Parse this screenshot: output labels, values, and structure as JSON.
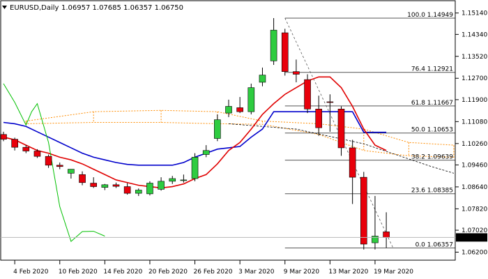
{
  "header": {
    "symbol": "EURUSD,Daily",
    "ohlc": "1.06957 1.07685 1.06357 1.06750"
  },
  "chart_data": {
    "type": "candlestick",
    "ylim": [
      1.059,
      1.156
    ],
    "y_ticks": [
      "1.15140",
      "1.14340",
      "1.13520",
      "1.12700",
      "1.11900",
      "1.11080",
      "1.10260",
      "1.09460",
      "1.08640",
      "1.07820",
      "1.07020",
      "1.06200"
    ],
    "x_labels": [
      {
        "label": "4 Feb 2020",
        "day": 1
      },
      {
        "label": "10 Feb 2020",
        "day": 5
      },
      {
        "label": "14 Feb 2020",
        "day": 9
      },
      {
        "label": "20 Feb 2020",
        "day": 13
      },
      {
        "label": "26 Feb 2020",
        "day": 17
      },
      {
        "label": "3 Mar 2020",
        "day": 21
      },
      {
        "label": "9 Mar 2020",
        "day": 25
      },
      {
        "label": "13 Mar 2020",
        "day": 29
      },
      {
        "label": "19 Mar 2020",
        "day": 33
      }
    ],
    "current_price": "1.06750",
    "colors": {
      "bull": "#2ecc40",
      "bear": "#e8000b",
      "border": "#000000",
      "ma_fast": "#e00000",
      "ma_slow": "#0000cc",
      "lagging": "#00c000",
      "cloud": "#ff8c00",
      "fib": "#555555"
    },
    "candles": [
      {
        "o": 1.106,
        "h": 1.107,
        "l": 1.1035,
        "c": 1.1042
      },
      {
        "o": 1.1042,
        "h": 1.1048,
        "l": 1.1,
        "c": 1.1012
      },
      {
        "o": 1.1012,
        "h": 1.102,
        "l": 1.099,
        "c": 1.0998
      },
      {
        "o": 1.0998,
        "h": 1.1005,
        "l": 1.0972,
        "c": 1.0978
      },
      {
        "o": 1.0978,
        "h": 1.0985,
        "l": 1.0935,
        "c": 1.0945
      },
      {
        "o": 1.0945,
        "h": 1.0955,
        "l": 1.093,
        "c": 1.094
      },
      {
        "o": 1.0915,
        "h": 1.093,
        "l": 1.0895,
        "c": 1.093
      },
      {
        "o": 1.091,
        "h": 1.0922,
        "l": 1.087,
        "c": 1.088
      },
      {
        "o": 1.0878,
        "h": 1.09,
        "l": 1.086,
        "c": 1.0865
      },
      {
        "o": 1.0862,
        "h": 1.0875,
        "l": 1.0852,
        "c": 1.0872
      },
      {
        "o": 1.0872,
        "h": 1.088,
        "l": 1.086,
        "c": 1.0866
      },
      {
        "o": 1.0865,
        "h": 1.0878,
        "l": 1.0835,
        "c": 1.084
      },
      {
        "o": 1.084,
        "h": 1.0858,
        "l": 1.083,
        "c": 1.0852
      },
      {
        "o": 1.0838,
        "h": 1.0885,
        "l": 1.0832,
        "c": 1.0878
      },
      {
        "o": 1.0855,
        "h": 1.09,
        "l": 1.085,
        "c": 1.0885
      },
      {
        "o": 1.0885,
        "h": 1.0905,
        "l": 1.0875,
        "c": 1.0895
      },
      {
        "o": 1.0888,
        "h": 1.091,
        "l": 1.088,
        "c": 1.089
      },
      {
        "o": 1.0895,
        "h": 1.099,
        "l": 1.0885,
        "c": 1.0975
      },
      {
        "o": 1.0985,
        "h": 1.102,
        "l": 1.0975,
        "c": 1.1
      },
      {
        "o": 1.1045,
        "h": 1.1135,
        "l": 1.1035,
        "c": 1.1115
      },
      {
        "o": 1.114,
        "h": 1.119,
        "l": 1.1125,
        "c": 1.1165
      },
      {
        "o": 1.116,
        "h": 1.12,
        "l": 1.114,
        "c": 1.1145
      },
      {
        "o": 1.1145,
        "h": 1.125,
        "l": 1.1135,
        "c": 1.1235
      },
      {
        "o": 1.1255,
        "h": 1.131,
        "l": 1.124,
        "c": 1.1282
      },
      {
        "o": 1.1335,
        "h": 1.1495,
        "l": 1.132,
        "c": 1.145
      },
      {
        "o": 1.144,
        "h": 1.1455,
        "l": 1.128,
        "c": 1.1295
      },
      {
        "o": 1.1295,
        "h": 1.134,
        "l": 1.1255,
        "c": 1.1285
      },
      {
        "o": 1.1265,
        "h": 1.1285,
        "l": 1.114,
        "c": 1.1155
      },
      {
        "o": 1.1155,
        "h": 1.1205,
        "l": 1.1055,
        "c": 1.1085
      },
      {
        "o": 1.1182,
        "h": 1.121,
        "l": 1.107,
        "c": 1.118
      },
      {
        "o": 1.1155,
        "h": 1.1165,
        "l": 1.098,
        "c": 1.101
      },
      {
        "o": 1.101,
        "h": 1.104,
        "l": 1.08,
        "c": 1.09
      },
      {
        "o": 1.09,
        "h": 1.092,
        "l": 1.063,
        "c": 1.065
      },
      {
        "o": 1.0655,
        "h": 1.083,
        "l": 1.063,
        "c": 1.068
      },
      {
        "o": 1.0696,
        "h": 1.0769,
        "l": 1.0636,
        "c": 1.0675
      }
    ],
    "ma_fast": [
      1.105,
      1.104,
      1.102,
      1.1,
      1.099,
      1.0975,
      1.0965,
      1.095,
      1.093,
      1.091,
      1.089,
      1.088,
      1.087,
      1.0865,
      1.086,
      1.0865,
      1.0875,
      1.0895,
      1.091,
      1.095,
      1.1,
      1.103,
      1.108,
      1.1135,
      1.1175,
      1.121,
      1.1235,
      1.126,
      1.1275,
      1.1275,
      1.1235,
      1.1165,
      1.108,
      1.102,
      1.1
    ],
    "ma_slow": [
      1.1105,
      1.11,
      1.109,
      1.107,
      1.105,
      1.103,
      1.101,
      1.099,
      1.0975,
      1.0965,
      1.0955,
      1.0948,
      1.0945,
      1.0945,
      1.0945,
      1.0945,
      1.0955,
      1.0975,
      1.099,
      1.1005,
      1.101,
      1.1015,
      1.105,
      1.108,
      1.1145,
      1.1145,
      1.1145,
      1.1145,
      1.1145,
      1.1145,
      1.1145,
      1.1145,
      1.1068,
      1.1068,
      1.1068
    ],
    "lagging": [
      {
        "day": 0,
        "v": 1.125
      },
      {
        "day": 1,
        "v": 1.118
      },
      {
        "day": 2,
        "v": 1.1095
      },
      {
        "day": 2.5,
        "v": 1.1145
      },
      {
        "day": 3,
        "v": 1.1175
      },
      {
        "day": 4,
        "v": 1.103
      },
      {
        "day": 5,
        "v": 1.079
      },
      {
        "day": 6,
        "v": 1.066
      },
      {
        "day": 7,
        "v": 1.0697
      },
      {
        "day": 8,
        "v": 1.0698
      },
      {
        "day": 9,
        "v": 1.068
      }
    ],
    "fib_high": {
      "day": 25,
      "v": 1.1495
    },
    "fib_low": {
      "day": 36,
      "v": 1.0636
    },
    "fib_levels": [
      {
        "label": "100.0 1.14949",
        "v": 1.14949
      },
      {
        "label": "76.4 1.12921",
        "v": 1.12921
      },
      {
        "label": "61.8 1.11667",
        "v": 1.11667
      },
      {
        "label": "50.0 1.10653",
        "v": 1.10653
      },
      {
        "label": "38.2 1.09639",
        "v": 1.09639
      },
      {
        "label": "23.6 1.08385",
        "v": 1.08385
      },
      {
        "label": "0.0 1.06357",
        "v": 1.06357
      }
    ],
    "cloud": [
      {
        "day": 2,
        "a": 1.111,
        "b": 1.11
      },
      {
        "day": 8,
        "a": 1.1145,
        "b": 1.1105
      },
      {
        "day": 14,
        "a": 1.115,
        "b": 1.1105
      },
      {
        "day": 19,
        "a": 1.1145,
        "b": 1.11
      },
      {
        "day": 23,
        "a": 1.111,
        "b": 1.1098
      },
      {
        "day": 28,
        "a": 1.11,
        "b": 1.106
      },
      {
        "day": 32,
        "a": 1.108,
        "b": 1.1
      },
      {
        "day": 36,
        "a": 1.103,
        "b": 1.098
      },
      {
        "day": 40,
        "a": 1.102,
        "b": 1.0975
      }
    ],
    "span_b_dashed": [
      {
        "day": 20,
        "v": 1.11
      },
      {
        "day": 26,
        "v": 1.108
      },
      {
        "day": 32,
        "v": 1.1025
      },
      {
        "day": 38,
        "v": 1.094
      },
      {
        "day": 40,
        "v": 1.0915
      }
    ]
  }
}
